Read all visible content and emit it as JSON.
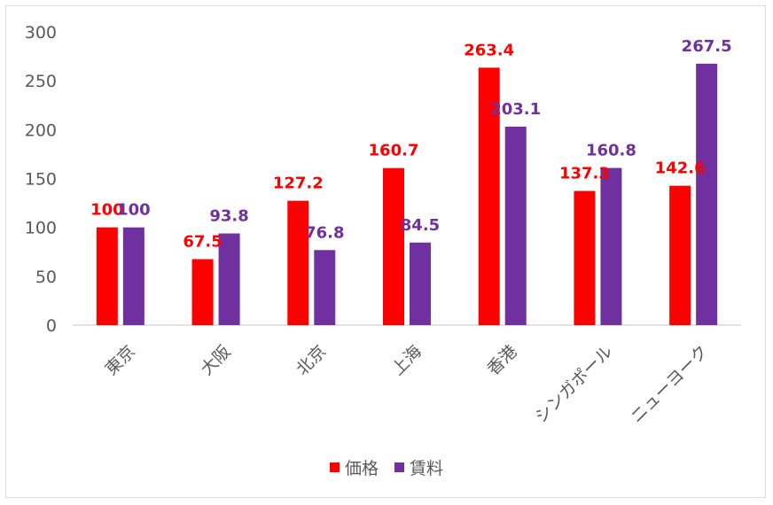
{
  "chart_data": {
    "type": "bar",
    "title": "",
    "xlabel": "",
    "ylabel": "",
    "ylim": [
      0,
      300
    ],
    "yticks": [
      0,
      50,
      100,
      150,
      200,
      250,
      300
    ],
    "grid": false,
    "legend_position": "bottom",
    "categories": [
      "東京",
      "大阪",
      "北京",
      "上海",
      "香港",
      "シンガポール",
      "ニューヨーク"
    ],
    "series": [
      {
        "name": "価格",
        "color": "#ff0000",
        "values": [
          100,
          67.5,
          127.2,
          160.7,
          263.4,
          137.3,
          142.6
        ],
        "labels": [
          "100",
          "67.5",
          "127.2",
          "160.7",
          "263.4",
          "137.3",
          "142.6"
        ]
      },
      {
        "name": "賃料",
        "color": "#7030a0",
        "values": [
          100,
          93.8,
          76.8,
          84.5,
          203.1,
          160.8,
          267.5
        ],
        "labels": [
          "100",
          "93.8",
          "76.8",
          "84.5",
          "203.1",
          "160.8",
          "267.5"
        ]
      }
    ]
  }
}
